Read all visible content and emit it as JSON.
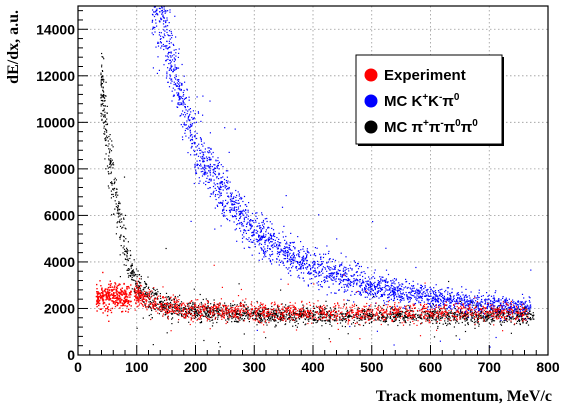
{
  "chart_data": {
    "type": "scatter",
    "xlabel": "Track momentum, MeV/c",
    "ylabel": "dE/dx, a.u.",
    "xlim": [
      0,
      800
    ],
    "ylim": [
      0,
      15000
    ],
    "x_ticks": [
      0,
      100,
      200,
      300,
      400,
      500,
      600,
      700,
      800
    ],
    "y_ticks": [
      0,
      2000,
      4000,
      6000,
      8000,
      10000,
      12000,
      14000
    ],
    "x_tick_labels": [
      "0",
      "100",
      "200",
      "300",
      "400",
      "500",
      "600",
      "700",
      "800"
    ],
    "y_tick_labels": [
      "0",
      "2000",
      "4000",
      "6000",
      "8000",
      "10000",
      "12000",
      "14000"
    ],
    "grid": true,
    "legend_position": "top-right",
    "legend": [
      {
        "key": "exp",
        "label": "Experiment",
        "color": "#ff0000"
      },
      {
        "key": "kk",
        "label": "MC K⁺K⁻π⁰",
        "color": "#0000ff"
      },
      {
        "key": "pp",
        "label": "MC π⁺π⁻π⁰π⁰",
        "color": "#000000"
      }
    ],
    "series": [
      {
        "name": "MC K⁺K⁻π⁰",
        "color": "#0000ff",
        "band_center": [
          [
            130,
            15500
          ],
          [
            150,
            13500
          ],
          [
            175,
            11000
          ],
          [
            200,
            9000
          ],
          [
            250,
            6700
          ],
          [
            300,
            5300
          ],
          [
            350,
            4400
          ],
          [
            400,
            3800
          ],
          [
            450,
            3350
          ],
          [
            500,
            3000
          ],
          [
            550,
            2700
          ],
          [
            600,
            2500
          ],
          [
            650,
            2300
          ],
          [
            700,
            2150
          ],
          [
            750,
            2050
          ]
        ],
        "spread": [
          [
            130,
            900
          ],
          [
            200,
            700
          ],
          [
            300,
            450
          ],
          [
            400,
            350
          ],
          [
            500,
            300
          ],
          [
            600,
            250
          ],
          [
            750,
            220
          ]
        ],
        "x_range": [
          125,
          770
        ]
      },
      {
        "name": "MC π⁺π⁻π⁰π⁰",
        "color": "#000000",
        "band_center": [
          [
            40,
            11500
          ],
          [
            50,
            9000
          ],
          [
            60,
            7200
          ],
          [
            70,
            5800
          ],
          [
            80,
            4500
          ],
          [
            90,
            3600
          ],
          [
            100,
            3000
          ],
          [
            120,
            2500
          ],
          [
            150,
            2100
          ],
          [
            200,
            1900
          ],
          [
            300,
            1750
          ],
          [
            400,
            1700
          ],
          [
            500,
            1700
          ],
          [
            600,
            1700
          ],
          [
            700,
            1700
          ],
          [
            770,
            1700
          ]
        ],
        "spread": [
          [
            40,
            900
          ],
          [
            80,
            450
          ],
          [
            150,
            250
          ],
          [
            300,
            180
          ],
          [
            770,
            170
          ]
        ],
        "x_range": [
          38,
          775
        ]
      },
      {
        "name": "Experiment",
        "color": "#ff0000",
        "clusters": [
          {
            "x_range": [
              30,
              90
            ],
            "y_center": 2500,
            "y_spread": 300
          }
        ],
        "band_center": [
          [
            100,
            2600
          ],
          [
            150,
            2100
          ],
          [
            200,
            1950
          ],
          [
            300,
            1850
          ],
          [
            400,
            1850
          ],
          [
            500,
            1850
          ],
          [
            600,
            1850
          ],
          [
            700,
            1850
          ],
          [
            760,
            1850
          ]
        ],
        "spread": [
          [
            100,
            250
          ],
          [
            300,
            200
          ],
          [
            760,
            180
          ]
        ],
        "x_range": [
          95,
          765
        ]
      }
    ]
  }
}
